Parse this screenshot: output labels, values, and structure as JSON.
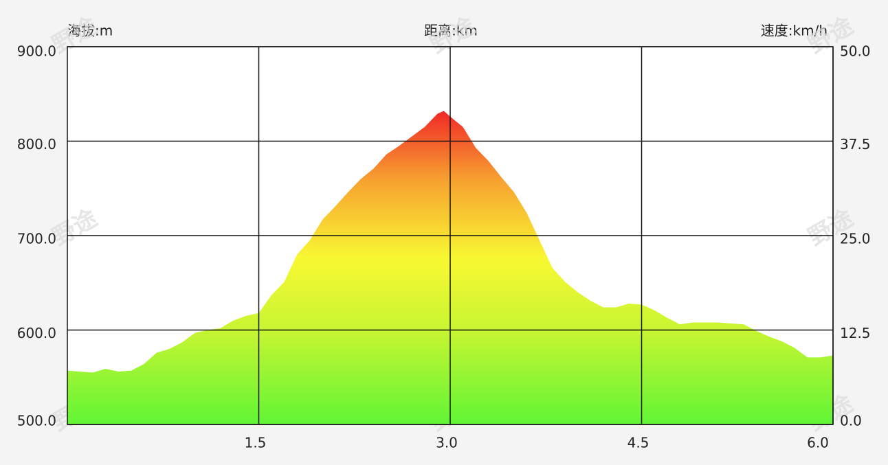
{
  "chart_data": {
    "type": "area",
    "ylabel": "海拔:m",
    "xlabel": "距离:km",
    "y2label": "速度:km/h",
    "watermark": "野途",
    "x": [
      0.0,
      0.2,
      0.3,
      0.4,
      0.5,
      0.6,
      0.7,
      0.8,
      0.9,
      1.0,
      1.1,
      1.2,
      1.3,
      1.4,
      1.5,
      1.6,
      1.7,
      1.8,
      1.9,
      2.0,
      2.1,
      2.2,
      2.3,
      2.4,
      2.5,
      2.6,
      2.7,
      2.8,
      2.9,
      2.95,
      3.0,
      3.1,
      3.2,
      3.3,
      3.4,
      3.5,
      3.6,
      3.7,
      3.8,
      3.9,
      4.0,
      4.1,
      4.2,
      4.3,
      4.4,
      4.5,
      4.6,
      4.7,
      4.8,
      4.9,
      5.0,
      5.1,
      5.2,
      5.3,
      5.4,
      5.5,
      5.6,
      5.7,
      5.8,
      5.9,
      6.0
    ],
    "values": [
      557,
      555,
      559,
      556,
      557,
      564,
      576,
      580,
      587,
      597,
      600,
      602,
      610,
      615,
      618,
      637,
      651,
      680,
      695,
      717,
      731,
      746,
      760,
      771,
      786,
      795,
      805,
      815,
      829,
      832,
      826,
      815,
      793,
      779,
      762,
      746,
      724,
      695,
      666,
      651,
      640,
      631,
      624,
      624,
      628,
      627,
      621,
      613,
      606,
      608,
      608,
      608,
      607,
      606,
      599,
      593,
      588,
      581,
      571,
      571,
      573
    ],
    "colors": [
      "#f02828",
      "#f7a030",
      "#f8f832",
      "#c8f532",
      "#60f535"
    ],
    "xlim": [
      0,
      6
    ],
    "xticks": [
      1.5,
      {
        "value": 3,
        "label": "3.0"
      },
      4.5,
      {
        "value": 6,
        "label": "6.0"
      }
    ],
    "ylim": [
      500,
      900
    ],
    "yticks": [
      {
        "value": 500,
        "label": "500.0"
      },
      {
        "value": 600,
        "label": "600.0"
      },
      {
        "value": 700,
        "label": "700.0"
      },
      {
        "value": 800,
        "label": "800.0"
      },
      {
        "value": 900,
        "label": "900.0"
      }
    ],
    "y2lim": [
      0,
      50
    ],
    "y2ticks": [
      {
        "value": 0,
        "label": "0.0"
      },
      12.5,
      {
        "value": 25,
        "label": "25.0"
      },
      37.5,
      {
        "value": 50,
        "label": "50.0"
      }
    ],
    "grid": true
  }
}
